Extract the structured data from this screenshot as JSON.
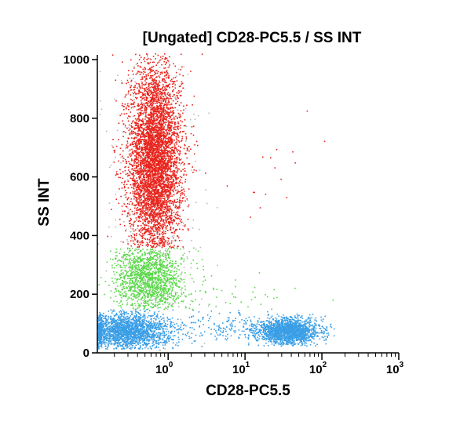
{
  "chart_data": {
    "type": "scatter",
    "title": "[Ungated] CD28-PC5.5 / SS INT",
    "xlabel": "CD28-PC5.5",
    "ylabel": "SS INT",
    "x_scale": "log",
    "xlim": [
      0.12,
      1000
    ],
    "ylim": [
      0,
      1023
    ],
    "x_ticks": [
      {
        "value": 1,
        "base": "10",
        "exp": "0"
      },
      {
        "value": 10,
        "base": "10",
        "exp": "1"
      },
      {
        "value": 100,
        "base": "10",
        "exp": "2"
      },
      {
        "value": 1000,
        "base": "10",
        "exp": "3"
      }
    ],
    "y_ticks": [
      {
        "value": 0,
        "label": "0"
      },
      {
        "value": 200,
        "label": "200"
      },
      {
        "value": 400,
        "label": "400"
      },
      {
        "value": 600,
        "label": "600"
      },
      {
        "value": 800,
        "label": "800"
      },
      {
        "value": 1000,
        "label": "1000"
      }
    ],
    "grid": false,
    "populations": [
      {
        "color": "#e8241c",
        "count": 5200,
        "x_log_mean": -0.18,
        "x_log_sd": 0.17,
        "y_mean": 650,
        "y_sd": 170,
        "y_range": [
          360,
          1023
        ]
      },
      {
        "color": "#e8241c",
        "count": 22,
        "x_log_mean": 1.3,
        "x_log_sd": 0.5,
        "y_mean": 600,
        "y_sd": 180,
        "y_range": [
          450,
          900
        ]
      },
      {
        "color": "#5ad84a",
        "count": 1500,
        "x_log_mean": -0.25,
        "x_log_sd": 0.22,
        "y_mean": 255,
        "y_sd": 60,
        "y_range": [
          150,
          360
        ]
      },
      {
        "color": "#5ad84a",
        "count": 60,
        "x_log_mean": 0.6,
        "x_log_sd": 0.45,
        "y_mean": 190,
        "y_sd": 35,
        "y_range": [
          150,
          300
        ]
      },
      {
        "color": "#3a9ee6",
        "count": 2200,
        "x_log_mean": -0.55,
        "x_log_sd": 0.3,
        "y_mean": 75,
        "y_sd": 32,
        "y_range": [
          15,
          150
        ]
      },
      {
        "color": "#3a9ee6",
        "count": 1800,
        "x_log_mean": 1.55,
        "x_log_sd": 0.2,
        "y_mean": 75,
        "y_sd": 22,
        "y_range": [
          25,
          135
        ]
      },
      {
        "color": "#3a9ee6",
        "count": 160,
        "x_log_mean": 0.75,
        "x_log_sd": 0.35,
        "y_mean": 95,
        "y_sd": 25,
        "y_range": [
          40,
          150
        ]
      },
      {
        "color": "#b9b9b9",
        "count": 500,
        "x_log_mean": -0.2,
        "x_log_sd": 0.3,
        "y_mean": 520,
        "y_sd": 300,
        "y_range": [
          0,
          1023
        ]
      }
    ]
  }
}
